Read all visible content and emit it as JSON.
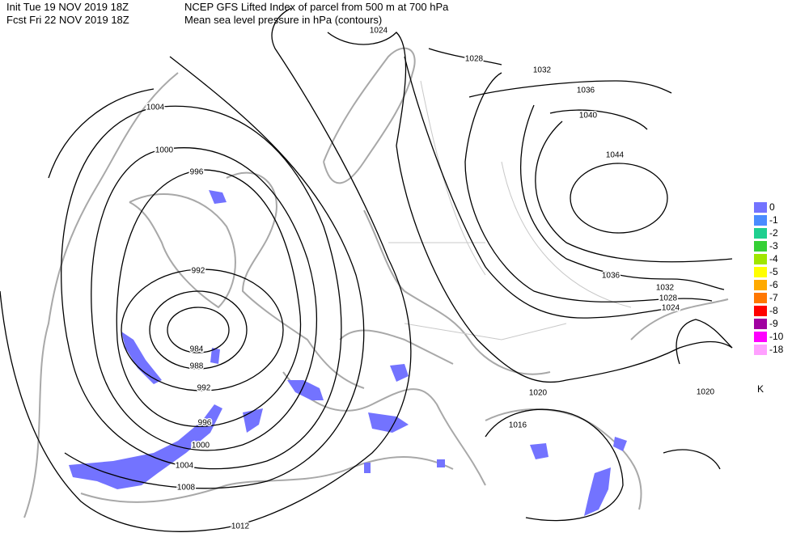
{
  "header": {
    "init": "Init  Tue 19 NOV 2019 18Z",
    "fcst": "Fcst Fri 22 NOV 2019 18Z",
    "title": "NCEP GFS Lifted Index of parcel from 500 m at 700 hPa",
    "subtitle": "Mean sea level pressure in hPa (contours)"
  },
  "contour_labels": [
    "1024",
    "1028",
    "1032",
    "1036",
    "1040",
    "1044",
    "1004",
    "1000",
    "996",
    "992",
    "984",
    "988",
    "992",
    "996",
    "1000",
    "1004",
    "1008",
    "1012",
    "1036",
    "1032",
    "1028",
    "1024",
    "1020",
    "1016",
    "1020"
  ],
  "legend": {
    "items": [
      {
        "label": "0",
        "color": "#7373ff"
      },
      {
        "label": "-1",
        "color": "#4a8cff"
      },
      {
        "label": "-2",
        "color": "#1fcf8f"
      },
      {
        "label": "-3",
        "color": "#35d035"
      },
      {
        "label": "-4",
        "color": "#a0e600"
      },
      {
        "label": "-5",
        "color": "#ffff00"
      },
      {
        "label": "-6",
        "color": "#ffaa00"
      },
      {
        "label": "-7",
        "color": "#ff7700"
      },
      {
        "label": "-8",
        "color": "#ff0000"
      },
      {
        "label": "-9",
        "color": "#a000a0"
      },
      {
        "label": "-10",
        "color": "#ff00ff"
      },
      {
        "label": "-18",
        "color": "#ffa0ff"
      }
    ],
    "unit": "K"
  }
}
